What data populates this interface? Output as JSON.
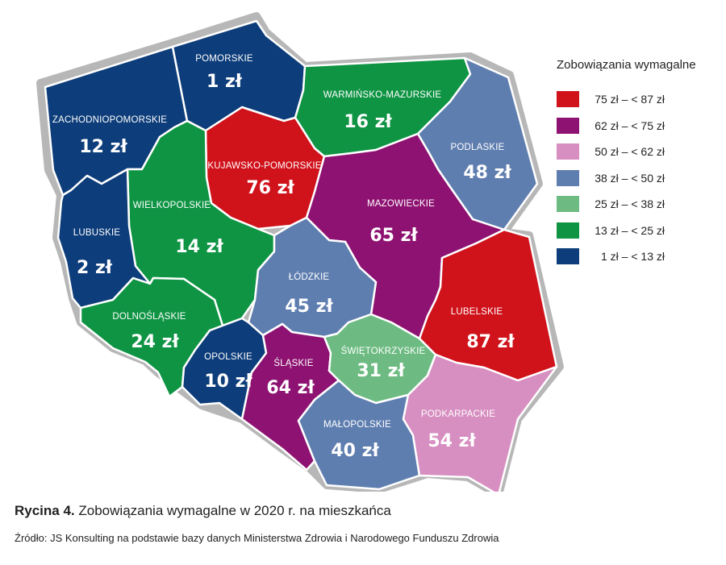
{
  "legend": {
    "title": "Zobowiązania wymagalne",
    "items": [
      {
        "label": "75 zł – < 87 zł",
        "color": "#d0121b"
      },
      {
        "label": "62 zł – < 75 zł",
        "color": "#8e1271"
      },
      {
        "label": "50 zł – < 62 zł",
        "color": "#d78ec0"
      },
      {
        "label": "38 zł – < 50 zł",
        "color": "#5f7eb0"
      },
      {
        "label": "25 zł – < 38 zł",
        "color": "#6dbb82"
      },
      {
        "label": "13 zł – < 25 zł",
        "color": "#0f9444"
      },
      {
        "label": "1 zł – < 13 zł",
        "color": "#0d3d7a"
      }
    ]
  },
  "regions": [
    {
      "id": "zachodniopomorskie",
      "name": "ZACHODNIOPOMORSKIE",
      "value": "12 zł",
      "color": "#0d3d7a"
    },
    {
      "id": "pomorskie",
      "name": "POMORSKIE",
      "value": "1 zł",
      "color": "#0d3d7a"
    },
    {
      "id": "warminsko-mazurskie",
      "name": "WARMIŃSKO-MAZURSKIE",
      "value": "16 zł",
      "color": "#0f9444"
    },
    {
      "id": "podlaskie",
      "name": "PODLASKIE",
      "value": "48 zł",
      "color": "#5f7eb0"
    },
    {
      "id": "kujawsko-pomorskie",
      "name": "KUJAWSKO-POMORSKIE",
      "value": "76 zł",
      "color": "#d0121b"
    },
    {
      "id": "wielkopolskie",
      "name": "WIELKOPOLSKIE",
      "value": "14 zł",
      "color": "#0f9444"
    },
    {
      "id": "lubuskie",
      "name": "LUBUSKIE",
      "value": "2 zł",
      "color": "#0d3d7a"
    },
    {
      "id": "mazowieckie",
      "name": "MAZOWIECKIE",
      "value": "65 zł",
      "color": "#8e1271"
    },
    {
      "id": "lodzkie",
      "name": "ŁÓDZKIE",
      "value": "45 zł",
      "color": "#5f7eb0"
    },
    {
      "id": "dolnoslaskie",
      "name": "DOLNOŚLĄSKIE",
      "value": "24 zł",
      "color": "#0f9444"
    },
    {
      "id": "opolskie",
      "name": "OPOLSKIE",
      "value": "10 zł",
      "color": "#0d3d7a"
    },
    {
      "id": "slaskie",
      "name": "ŚLĄSKIE",
      "value": "64 zł",
      "color": "#8e1271"
    },
    {
      "id": "swietokrzyskie",
      "name": "ŚWIĘTOKRZYSKIE",
      "value": "31 zł",
      "color": "#6dbb82"
    },
    {
      "id": "lubelskie",
      "name": "LUBELSKIE",
      "value": "87 zł",
      "color": "#d0121b"
    },
    {
      "id": "malopolskie",
      "name": "MAŁOPOLSKIE",
      "value": "40 zł",
      "color": "#5f7eb0"
    },
    {
      "id": "podkarpackie",
      "name": "PODKARPACKIE",
      "value": "54 zł",
      "color": "#d78ec0"
    }
  ],
  "caption": {
    "label": "Rycina 4.",
    "text": "Zobowiązania wymagalne w 2020 r. na mieszkańca"
  },
  "source": "Źródło: JS Konsulting na podstawie bazy danych Ministerstwa Zdrowia i Narodowego Funduszu Zdrowia"
}
